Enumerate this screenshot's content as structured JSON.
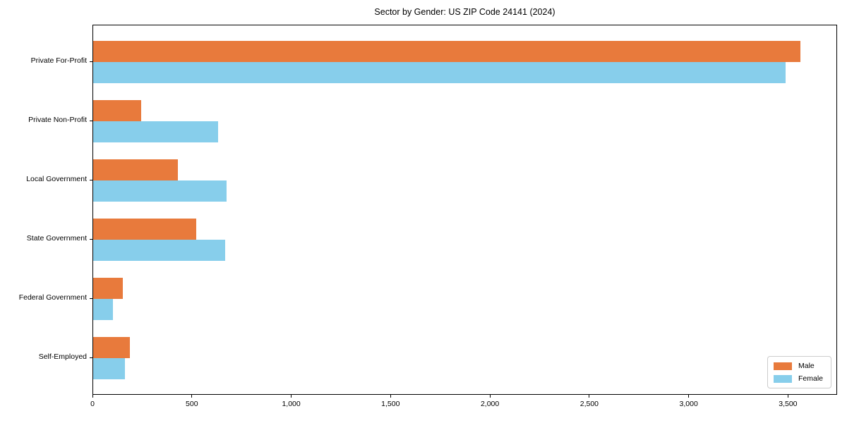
{
  "colors": {
    "background": "#ffffff",
    "axis": "#000000",
    "legend_border": "#cccccc",
    "male": "#e87a3c",
    "female": "#87ceeb"
  },
  "chart_data": {
    "type": "bar",
    "orientation": "horizontal",
    "title": "Sector by Gender: US ZIP Code 24141 (2024)",
    "xlabel": "",
    "ylabel": "",
    "categories": [
      "Private For-Profit",
      "Private Non-Profit",
      "Local Government",
      "State Government",
      "Federal Government",
      "Self-Employed"
    ],
    "series": [
      {
        "name": "Male",
        "color": "#e87a3c",
        "values": [
          3560,
          240,
          425,
          520,
          150,
          185
        ]
      },
      {
        "name": "Female",
        "color": "#87ceeb",
        "values": [
          3485,
          630,
          670,
          665,
          100,
          160
        ]
      }
    ],
    "xlim": [
      0,
      3740
    ],
    "xticks": [
      0,
      500,
      1000,
      1500,
      2000,
      2500,
      3000,
      3500
    ],
    "xtick_labels": [
      "0",
      "500",
      "1,000",
      "1,500",
      "2,000",
      "2,500",
      "3,000",
      "3,500"
    ],
    "grid": false,
    "legend_position": "lower right"
  }
}
